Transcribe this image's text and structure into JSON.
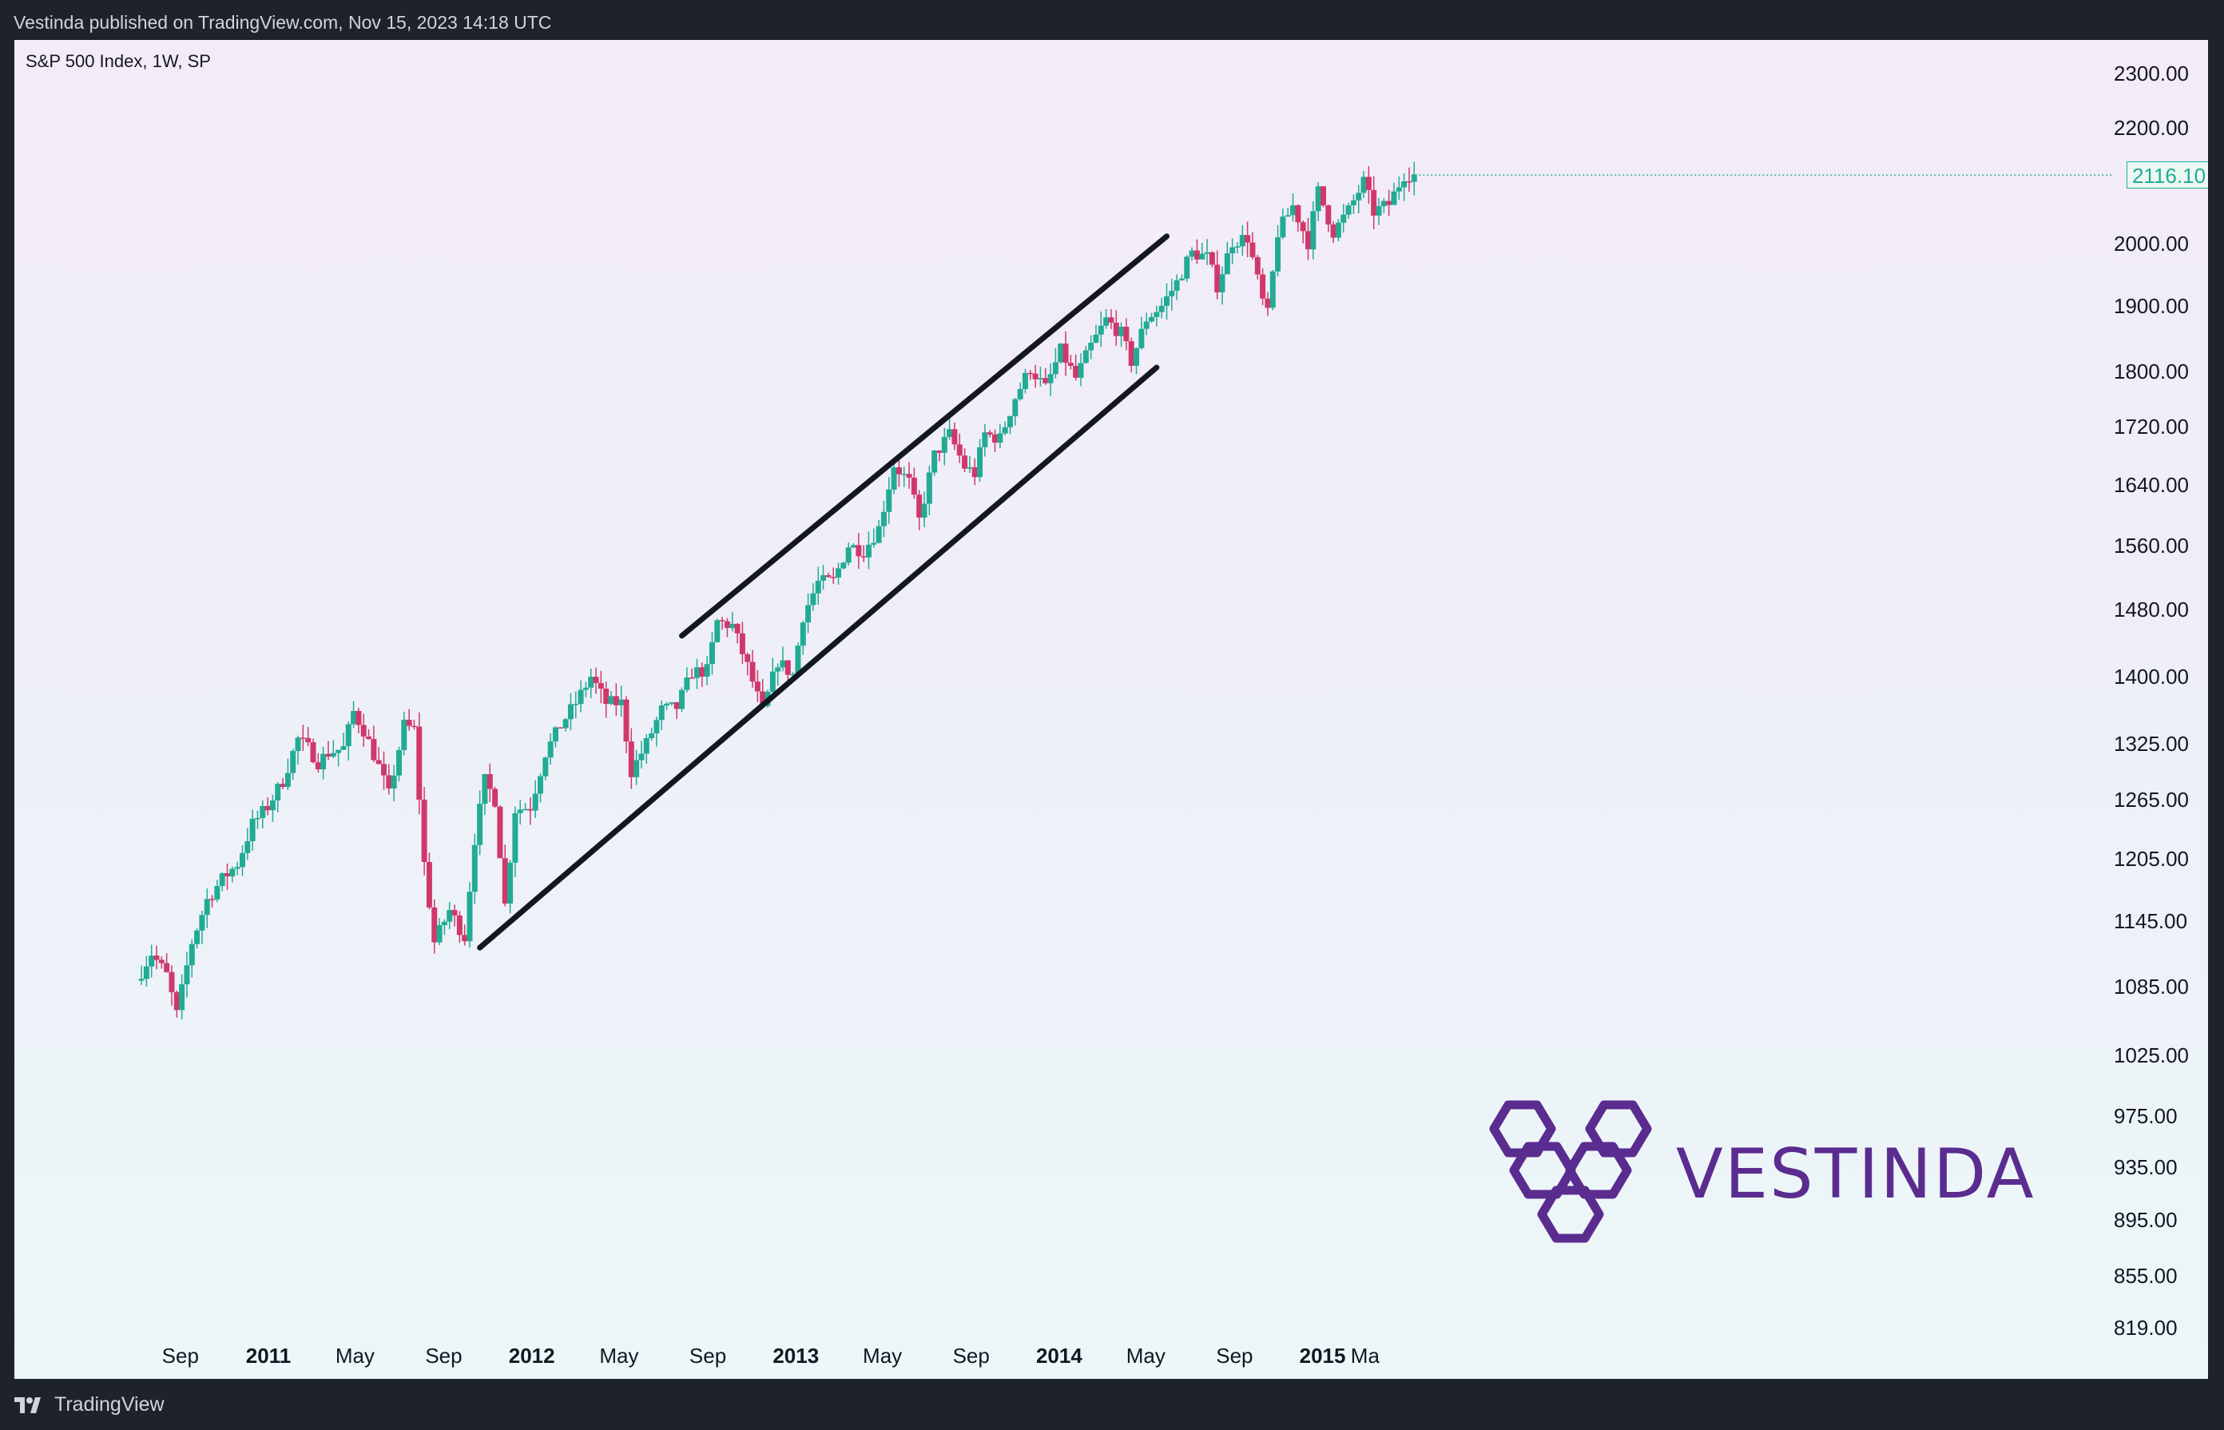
{
  "header": {
    "published": "Vestinda published on TradingView.com, Nov 15, 2023 14:18 UTC"
  },
  "footer": {
    "brand": "TradingView"
  },
  "watermark": {
    "text": "VESTINDA"
  },
  "colors": {
    "up": "#22ab94",
    "down": "#d0386b",
    "line": "#131722",
    "accent": "#5b2c90"
  },
  "chart_data": {
    "type": "candlestick",
    "title": "S&P 500 Index, 1W, SP",
    "last_price": "2116.10",
    "y_ticks": [
      "2300.00",
      "2200.00",
      "2000.00",
      "1900.00",
      "1800.00",
      "1720.00",
      "1640.00",
      "1560.00",
      "1480.00",
      "1400.00",
      "1325.00",
      "1265.00",
      "1205.00",
      "1145.00",
      "1085.00",
      "1025.00",
      "975.00",
      "935.00",
      "895.00",
      "855.00",
      "819.00"
    ],
    "x_ticks": [
      "Sep",
      "2011",
      "May",
      "Sep",
      "2012",
      "May",
      "Sep",
      "2013",
      "May",
      "Sep",
      "2014",
      "May",
      "Sep",
      "2015",
      "Ma"
    ],
    "close_series": [
      [
        "2010-07-02",
        1090
      ],
      [
        "2010-07-23",
        1115
      ],
      [
        "2010-08-13",
        1095
      ],
      [
        "2010-08-27",
        1060
      ],
      [
        "2010-09-17",
        1125
      ],
      [
        "2010-10-08",
        1165
      ],
      [
        "2010-10-29",
        1185
      ],
      [
        "2010-11-19",
        1200
      ],
      [
        "2010-12-10",
        1240
      ],
      [
        "2010-12-31",
        1258
      ],
      [
        "2011-01-21",
        1285
      ],
      [
        "2011-02-11",
        1330
      ],
      [
        "2011-02-25",
        1320
      ],
      [
        "2011-03-11",
        1305
      ],
      [
        "2011-03-25",
        1315
      ],
      [
        "2011-04-15",
        1320
      ],
      [
        "2011-04-29",
        1360
      ],
      [
        "2011-05-13",
        1340
      ],
      [
        "2011-06-03",
        1300
      ],
      [
        "2011-06-17",
        1270
      ],
      [
        "2011-07-08",
        1345
      ],
      [
        "2011-07-22",
        1340
      ],
      [
        "2011-08-05",
        1200
      ],
      [
        "2011-08-19",
        1125
      ],
      [
        "2011-09-09",
        1155
      ],
      [
        "2011-09-30",
        1130
      ],
      [
        "2011-10-14",
        1225
      ],
      [
        "2011-10-28",
        1285
      ],
      [
        "2011-11-11",
        1265
      ],
      [
        "2011-11-25",
        1160
      ],
      [
        "2011-12-09",
        1255
      ],
      [
        "2011-12-30",
        1258
      ],
      [
        "2012-01-20",
        1315
      ],
      [
        "2012-02-10",
        1345
      ],
      [
        "2012-03-02",
        1370
      ],
      [
        "2012-03-23",
        1400
      ],
      [
        "2012-04-13",
        1370
      ],
      [
        "2012-05-04",
        1370
      ],
      [
        "2012-05-18",
        1295
      ],
      [
        "2012-06-08",
        1325
      ],
      [
        "2012-06-29",
        1362
      ],
      [
        "2012-07-20",
        1365
      ],
      [
        "2012-08-10",
        1405
      ],
      [
        "2012-08-31",
        1407
      ],
      [
        "2012-09-14",
        1465
      ],
      [
        "2012-10-05",
        1460
      ],
      [
        "2012-10-26",
        1412
      ],
      [
        "2012-11-16",
        1360
      ],
      [
        "2012-12-07",
        1418
      ],
      [
        "2012-12-28",
        1402
      ],
      [
        "2013-01-11",
        1472
      ],
      [
        "2013-02-01",
        1513
      ],
      [
        "2013-02-22",
        1515
      ],
      [
        "2013-03-15",
        1560
      ],
      [
        "2013-04-05",
        1553
      ],
      [
        "2013-04-26",
        1582
      ],
      [
        "2013-05-17",
        1667
      ],
      [
        "2013-06-07",
        1643
      ],
      [
        "2013-06-21",
        1592
      ],
      [
        "2013-07-12",
        1680
      ],
      [
        "2013-08-02",
        1709
      ],
      [
        "2013-08-23",
        1664
      ],
      [
        "2013-09-06",
        1655
      ],
      [
        "2013-09-20",
        1710
      ],
      [
        "2013-10-11",
        1703
      ],
      [
        "2013-11-01",
        1762
      ],
      [
        "2013-11-22",
        1805
      ],
      [
        "2013-12-13",
        1775
      ],
      [
        "2014-01-03",
        1831
      ],
      [
        "2014-01-24",
        1790
      ],
      [
        "2014-02-14",
        1838
      ],
      [
        "2014-03-07",
        1878
      ],
      [
        "2014-03-28",
        1857
      ],
      [
        "2014-04-11",
        1815
      ],
      [
        "2014-05-02",
        1880
      ],
      [
        "2014-05-23",
        1900
      ],
      [
        "2014-06-13",
        1937
      ],
      [
        "2014-07-03",
        1985
      ],
      [
        "2014-07-25",
        1978
      ],
      [
        "2014-08-08",
        1932
      ],
      [
        "2014-08-29",
        2003
      ],
      [
        "2014-09-19",
        2010
      ],
      [
        "2014-10-10",
        1907
      ],
      [
        "2014-10-17",
        1886
      ],
      [
        "2014-10-31",
        2018
      ],
      [
        "2014-11-21",
        2063
      ],
      [
        "2014-12-12",
        2002
      ],
      [
        "2014-12-26",
        2088
      ],
      [
        "2015-01-16",
        2019
      ],
      [
        "2015-02-06",
        2055
      ],
      [
        "2015-02-27",
        2104
      ],
      [
        "2015-03-13",
        2053
      ],
      [
        "2015-04-03",
        2066
      ],
      [
        "2015-04-24",
        2117
      ],
      [
        "2015-05-08",
        2116.1
      ]
    ],
    "trendlines": [
      {
        "from": [
          "2012-07-27",
          1448
        ],
        "to": [
          "2014-05-30",
          2012
        ]
      },
      {
        "from": [
          "2011-10-21",
          1120
        ],
        "to": [
          "2014-05-16",
          1806
        ]
      }
    ]
  }
}
